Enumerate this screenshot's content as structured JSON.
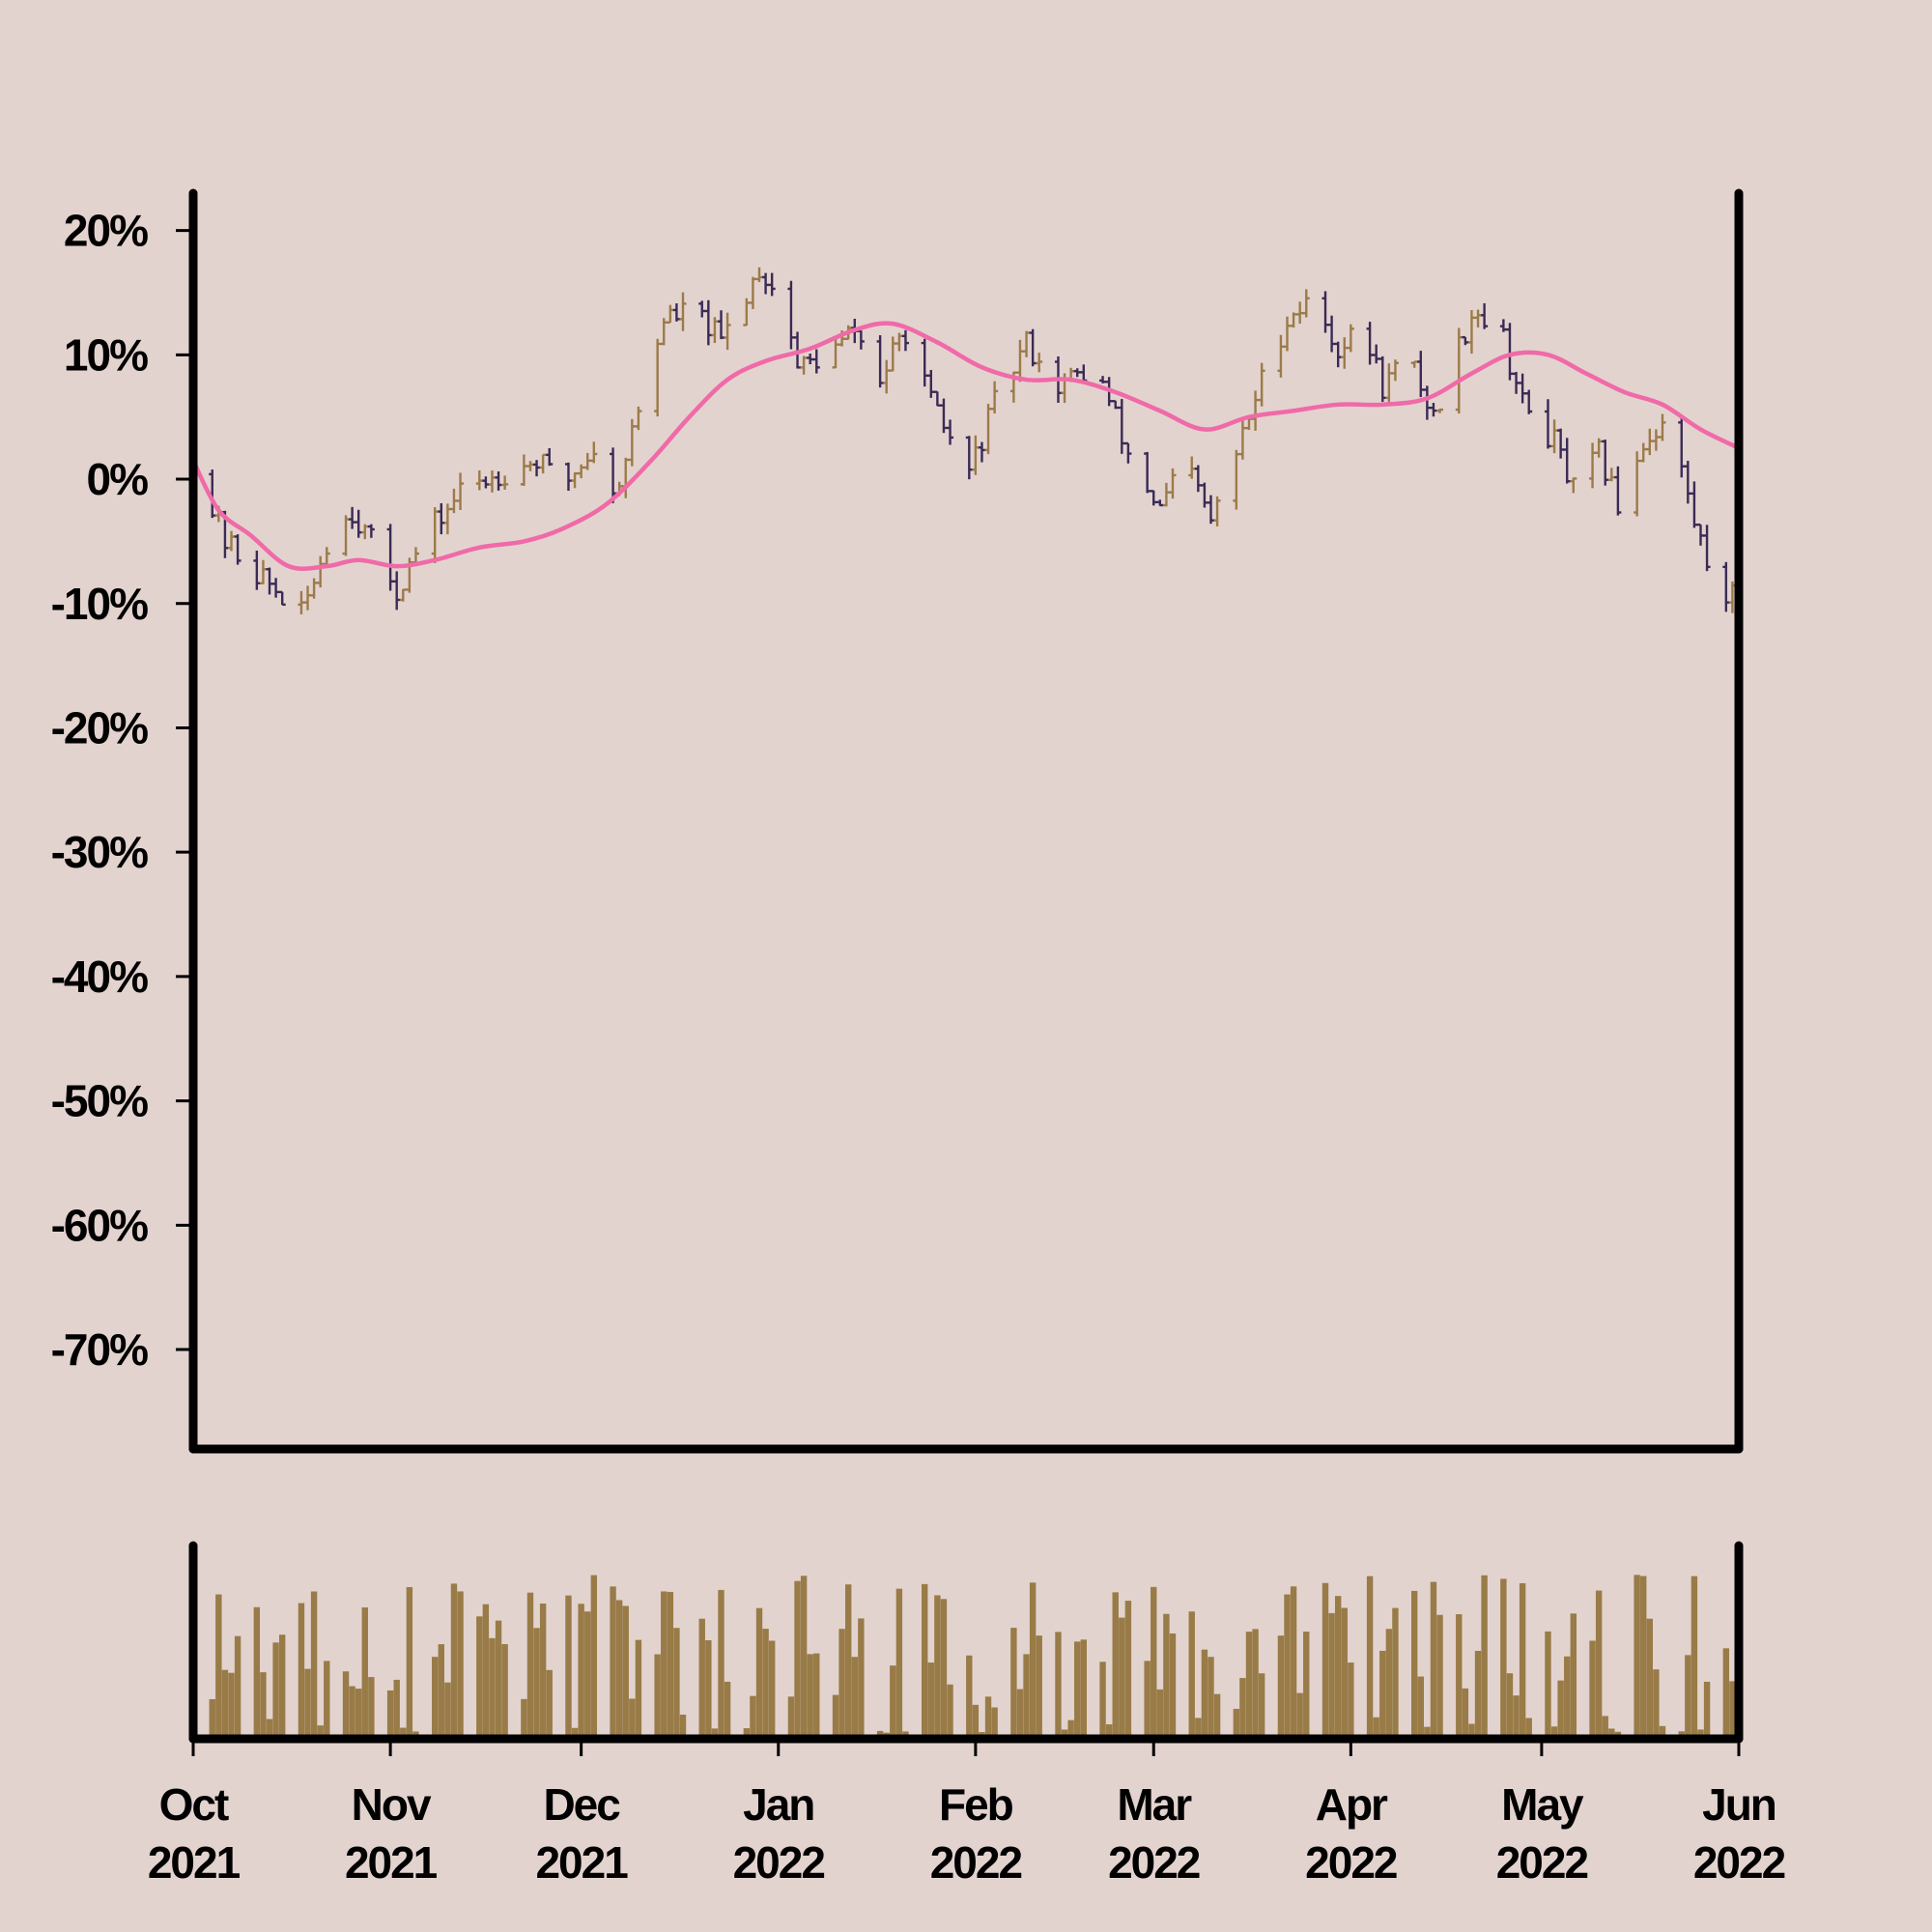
{
  "chart_data": [
    {
      "type": "ohlc",
      "panel": "price",
      "title": "",
      "xlabel": "",
      "ylabel": "",
      "ylim": [
        -78,
        23
      ],
      "y_ticks": [
        20,
        10,
        0,
        -10,
        -20,
        -30,
        -40,
        -50,
        -60,
        -70
      ],
      "y_tick_labels": [
        "20%",
        "10%",
        "0%",
        "-10%",
        "-20%",
        "-30%",
        "-40%",
        "-50%",
        "-60%",
        "-70%"
      ],
      "xlim": [
        "2021-10-01",
        "2022-06-01"
      ],
      "grid": false,
      "legend": "none",
      "series": [
        {
          "kind": "ohlc",
          "up_color": "#9b7b49",
          "down_color": "#3a2a55",
          "anchors": [
            [
              "2021-10-01",
              1.5
            ],
            [
              "2021-10-06",
              -5
            ],
            [
              "2021-10-12",
              -8
            ],
            [
              "2021-10-18",
              -11
            ],
            [
              "2021-10-22",
              -5
            ],
            [
              "2021-10-26",
              -2.5
            ],
            [
              "2021-10-30",
              -6
            ],
            [
              "2021-11-02",
              -9
            ],
            [
              "2021-11-06",
              -5
            ],
            [
              "2021-11-12",
              -1
            ],
            [
              "2021-11-18",
              0.5
            ],
            [
              "2021-11-24",
              1.5
            ],
            [
              "2021-11-28",
              -0.5
            ],
            [
              "2021-12-03",
              2.5
            ],
            [
              "2021-12-06",
              -1.5
            ],
            [
              "2021-12-10",
              5.5
            ],
            [
              "2021-12-14",
              13
            ],
            [
              "2021-12-19",
              13.5
            ],
            [
              "2021-12-23",
              11
            ],
            [
              "2021-12-29",
              17
            ],
            [
              "2022-01-02",
              14
            ],
            [
              "2022-01-04",
              9
            ],
            [
              "2022-01-09",
              10
            ],
            [
              "2022-01-13",
              12
            ],
            [
              "2022-01-17",
              8
            ],
            [
              "2022-01-21",
              12
            ],
            [
              "2022-01-25",
              6
            ],
            [
              "2022-01-31",
              0.5
            ],
            [
              "2022-02-04",
              6
            ],
            [
              "2022-02-09",
              11
            ],
            [
              "2022-02-14",
              7.5
            ],
            [
              "2022-02-20",
              9
            ],
            [
              "2022-02-25",
              2
            ],
            [
              "2022-03-02",
              -2.5
            ],
            [
              "2022-03-06",
              1.5
            ],
            [
              "2022-03-10",
              -3.5
            ],
            [
              "2022-03-14",
              2
            ],
            [
              "2022-03-18",
              8
            ],
            [
              "2022-03-22",
              13
            ],
            [
              "2022-03-26",
              14.5
            ],
            [
              "2022-03-30",
              10.5
            ],
            [
              "2022-04-03",
              12
            ],
            [
              "2022-04-06",
              7.5
            ],
            [
              "2022-04-10",
              10
            ],
            [
              "2022-04-14",
              5
            ],
            [
              "2022-04-20",
              13.5
            ],
            [
              "2022-04-24",
              13
            ],
            [
              "2022-04-28",
              6
            ],
            [
              "2022-05-03",
              3
            ],
            [
              "2022-05-06",
              -1
            ],
            [
              "2022-05-10",
              2
            ],
            [
              "2022-05-13",
              -2
            ],
            [
              "2022-05-17",
              3
            ],
            [
              "2022-05-21",
              5
            ],
            [
              "2022-05-25",
              -3.5
            ],
            [
              "2022-05-28",
              -8
            ],
            [
              "2022-06-01",
              -10
            ]
          ]
        },
        {
          "kind": "line",
          "color": "#f06aa8",
          "points": [
            [
              "2021-10-01",
              1.5
            ],
            [
              "2021-10-05",
              -2.5
            ],
            [
              "2021-10-10",
              -4.5
            ],
            [
              "2021-10-16",
              -7
            ],
            [
              "2021-10-22",
              -7
            ],
            [
              "2021-10-27",
              -6.5
            ],
            [
              "2021-11-02",
              -7
            ],
            [
              "2021-11-08",
              -6.5
            ],
            [
              "2021-11-15",
              -5.5
            ],
            [
              "2021-11-22",
              -5
            ],
            [
              "2021-11-28",
              -4
            ],
            [
              "2021-12-05",
              -2
            ],
            [
              "2021-12-12",
              1.5
            ],
            [
              "2021-12-18",
              5
            ],
            [
              "2021-12-24",
              8
            ],
            [
              "2021-12-30",
              9.5
            ],
            [
              "2022-01-06",
              10.5
            ],
            [
              "2022-01-13",
              12
            ],
            [
              "2022-01-19",
              12.5
            ],
            [
              "2022-01-26",
              11
            ],
            [
              "2022-02-02",
              9
            ],
            [
              "2022-02-09",
              8
            ],
            [
              "2022-02-16",
              8
            ],
            [
              "2022-02-23",
              7
            ],
            [
              "2022-03-02",
              5.5
            ],
            [
              "2022-03-09",
              4
            ],
            [
              "2022-03-16",
              5
            ],
            [
              "2022-03-23",
              5.5
            ],
            [
              "2022-03-30",
              6
            ],
            [
              "2022-04-06",
              6
            ],
            [
              "2022-04-13",
              6.5
            ],
            [
              "2022-04-20",
              8.5
            ],
            [
              "2022-04-26",
              10
            ],
            [
              "2022-05-02",
              10
            ],
            [
              "2022-05-08",
              8.5
            ],
            [
              "2022-05-14",
              7
            ],
            [
              "2022-05-20",
              6
            ],
            [
              "2022-05-26",
              4
            ],
            [
              "2022-06-01",
              2.5
            ]
          ]
        }
      ]
    },
    {
      "type": "bar",
      "panel": "volume",
      "title": "",
      "xlabel": "",
      "ylabel": "",
      "grid": false,
      "color": "#987b47",
      "x_tick_labels": [
        [
          "Oct",
          "2021"
        ],
        [
          "Nov",
          "2021"
        ],
        [
          "Dec",
          "2021"
        ],
        [
          "Jan",
          "2022"
        ],
        [
          "Feb",
          "2022"
        ],
        [
          "Mar",
          "2022"
        ],
        [
          "Apr",
          "2022"
        ],
        [
          "May",
          "2022"
        ],
        [
          "Jun",
          "2022"
        ]
      ],
      "x_ticks": [
        "2021-10-01",
        "2021-11-01",
        "2021-12-01",
        "2022-01-01",
        "2022-02-01",
        "2022-03-01",
        "2022-04-01",
        "2022-05-01",
        "2022-06-01"
      ]
    }
  ],
  "colors": {
    "background": "#e3d3cf",
    "axis": "#000000",
    "up": "#9b7b49",
    "down": "#3a2a55",
    "moving_average": "#f06aa8",
    "volume": "#987b47"
  }
}
